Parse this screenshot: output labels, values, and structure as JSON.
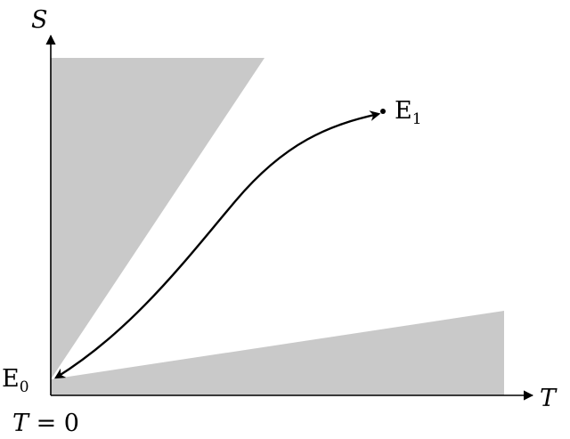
{
  "axes": {
    "x_label": "T",
    "y_label": "S"
  },
  "origin_label": {
    "lhs": "T",
    "eq": " = 0"
  },
  "points": {
    "start": {
      "base": "E",
      "sub": "0"
    },
    "end": {
      "base": "E",
      "sub": "1"
    }
  },
  "colors": {
    "region_fill": "#c9c9c9",
    "line": "#000000"
  }
}
